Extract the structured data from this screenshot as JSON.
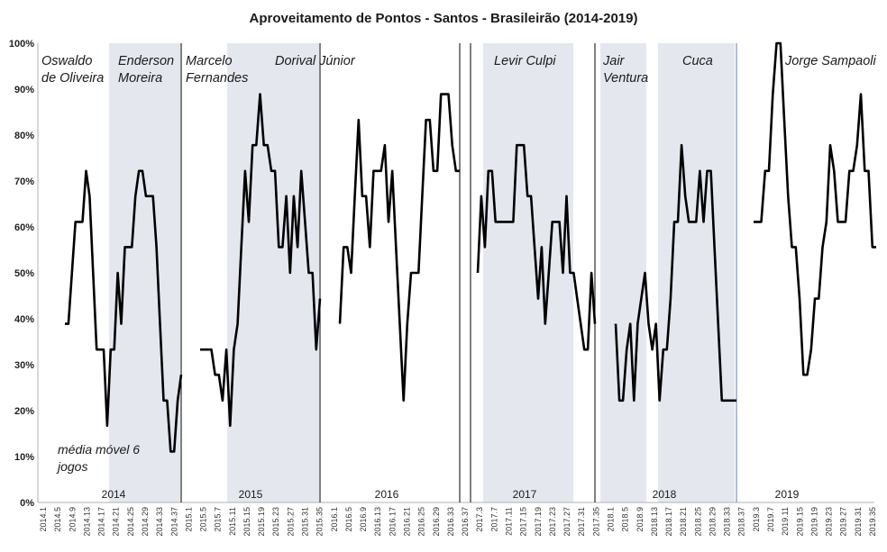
{
  "chart_data": {
    "type": "line",
    "title": "Aproveitamento de Pontos - Santos - Brasileirão (2014-2019)",
    "note_lines": [
      "média móvel 6",
      "jogos"
    ],
    "ylim": [
      0,
      100
    ],
    "y_ticks": [
      "0%",
      "10%",
      "20%",
      "30%",
      "40%",
      "50%",
      "60%",
      "70%",
      "80%",
      "90%",
      "100%"
    ],
    "x_ticks": [
      "2014.1",
      "2014.5",
      "2014.9",
      "2014.13",
      "2014.17",
      "2014.21",
      "2014.25",
      "2014.29",
      "2014.33",
      "2014.37",
      "2015.1",
      "2015.5",
      "2015.7",
      "2015.11",
      "2015.15",
      "2015.19",
      "2015.23",
      "2015.27",
      "2015.31",
      "2015.35",
      "2016.1",
      "2016.5",
      "2016.9",
      "2016.13",
      "2016.17",
      "2016.21",
      "2016.25",
      "2016.29",
      "2016.33",
      "2016.37",
      "2017.3",
      "2017.7",
      "2017.11",
      "2017.15",
      "2017.19",
      "2017.23",
      "2017.27",
      "2017.31",
      "2017.35",
      "2018.1",
      "2018.5",
      "2018.9",
      "2018.13",
      "2018.17",
      "2018.21",
      "2018.25",
      "2018.29",
      "2018.33",
      "2018.37",
      "2019.3",
      "2019.7",
      "2019.11",
      "2019.15",
      "2019.19",
      "2019.23",
      "2019.27",
      "2019.31",
      "2019.35"
    ],
    "years": [
      "2014",
      "2015",
      "2016",
      "2017",
      "2018",
      "2019"
    ],
    "coaches": [
      {
        "lines": [
          "Oswaldo",
          "de Oliveira"
        ],
        "shaded": false
      },
      {
        "lines": [
          "Enderson",
          "Moreira"
        ],
        "shaded": true
      },
      {
        "lines": [
          "Marcelo",
          "Fernandes"
        ],
        "shaded": false
      },
      {
        "lines": [
          "Dorival Júnior"
        ],
        "shaded": true
      },
      {
        "lines": [
          "Levir Culpi"
        ],
        "shaded": true
      },
      {
        "lines": [
          "Jair",
          "Ventura"
        ],
        "shaded": true
      },
      {
        "lines": [
          "Cuca"
        ],
        "shaded": true
      },
      {
        "lines": [
          "Jorge Sampaoli"
        ],
        "shaded": false
      }
    ],
    "series": [
      {
        "season": "2014",
        "values": [
          38.9,
          38.9,
          50,
          61.1,
          61.1,
          61.1,
          72.2,
          66.7,
          50,
          33.3,
          33.3,
          33.3,
          16.7,
          33.3,
          33.3,
          50,
          38.9,
          55.6,
          55.6,
          55.6,
          66.7,
          72.2,
          72.2,
          66.7,
          66.7,
          66.7,
          55.6,
          38.9,
          22.2,
          22.2,
          11.1,
          11.1,
          22.2,
          27.8
        ]
      },
      {
        "season": "2015",
        "values": [
          33.3,
          33.3,
          33.3,
          33.3,
          27.8,
          27.8,
          22.2,
          33.3,
          16.7,
          33.3,
          38.9,
          55.6,
          72.2,
          61.1,
          77.8,
          77.8,
          88.9,
          77.8,
          77.8,
          72.2,
          72.2,
          55.6,
          55.6,
          66.7,
          50,
          66.7,
          55.6,
          72.2,
          61.1,
          50,
          50,
          33.3,
          44.4
        ]
      },
      {
        "season": "2016",
        "values": [
          38.9,
          55.6,
          55.6,
          50,
          66.7,
          83.3,
          66.7,
          66.7,
          55.6,
          72.2,
          72.2,
          72.2,
          77.8,
          61.1,
          72.2,
          55.6,
          38.9,
          22.2,
          38.9,
          50,
          50,
          50,
          66.7,
          83.3,
          83.3,
          72.2,
          72.2,
          88.9,
          88.9,
          88.9,
          77.8,
          72.2,
          72.2
        ]
      },
      {
        "season": "2017",
        "values": [
          50,
          66.7,
          55.6,
          72.2,
          72.2,
          61.1,
          61.1,
          61.1,
          61.1,
          61.1,
          61.1,
          77.8,
          77.8,
          77.8,
          66.7,
          66.7,
          55.6,
          44.4,
          55.6,
          38.9,
          50,
          61.1,
          61.1,
          61.1,
          50,
          66.7,
          50,
          50,
          44.4,
          38.9,
          33.3,
          33.3,
          50,
          38.9
        ]
      },
      {
        "season": "2018",
        "values": [
          38.9,
          22.2,
          22.2,
          33.3,
          38.9,
          22.2,
          38.9,
          44.4,
          50,
          38.9,
          33.3,
          38.9,
          22.2,
          33.3,
          33.3,
          44.4,
          61.1,
          61.1,
          77.8,
          66.7,
          61.1,
          61.1,
          61.1,
          72.2,
          61.1,
          72.2,
          72.2,
          55.6,
          38.9,
          22.2,
          22.2,
          22.2,
          22.2,
          22.2
        ]
      },
      {
        "season": "2019",
        "values": [
          61.1,
          61.1,
          61.1,
          72.2,
          72.2,
          88.9,
          100,
          100,
          83.3,
          66.7,
          55.6,
          55.6,
          44.4,
          27.8,
          27.8,
          33.3,
          44.4,
          44.4,
          55.6,
          61.1,
          77.8,
          72.2,
          61.1,
          61.1,
          61.1,
          72.2,
          72.2,
          77.8,
          88.9,
          72.2,
          72.2,
          55.6,
          55.6
        ]
      }
    ]
  }
}
